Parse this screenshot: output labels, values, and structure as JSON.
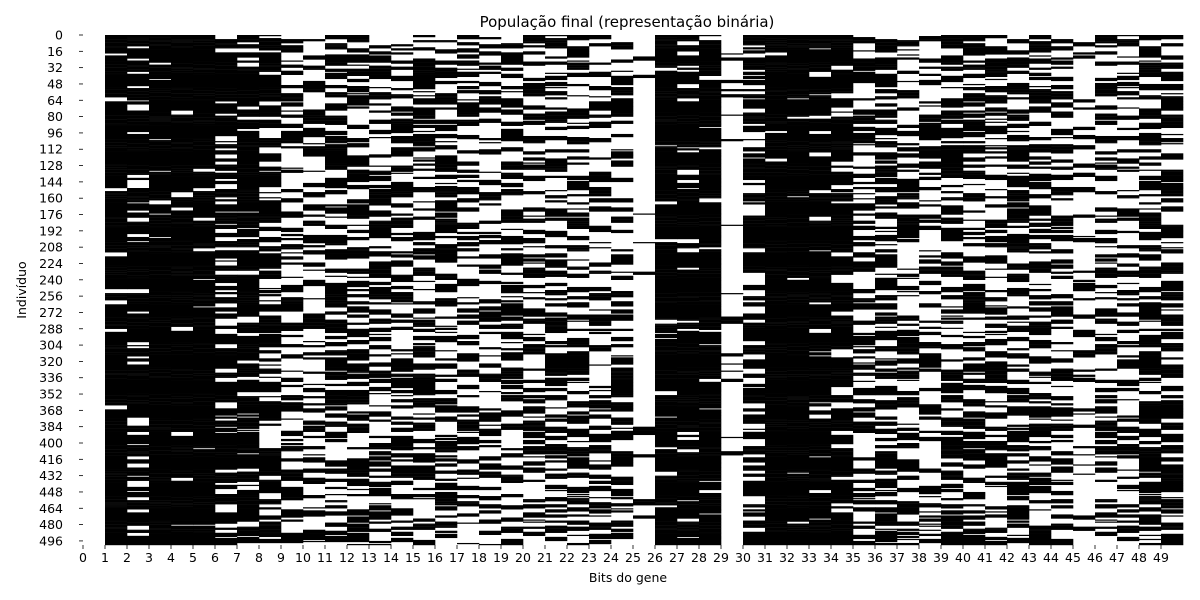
{
  "chart_data": {
    "type": "heatmap",
    "title": "População final (representação binária)",
    "xlabel": "Bits do gene",
    "ylabel": "Indivíduo",
    "n_rows": 500,
    "n_cols": 50,
    "x_tick_labels": [
      "0",
      "1",
      "2",
      "3",
      "4",
      "5",
      "6",
      "7",
      "8",
      "9",
      "10",
      "11",
      "12",
      "13",
      "14",
      "15",
      "16",
      "17",
      "18",
      "19",
      "20",
      "21",
      "22",
      "23",
      "24",
      "25",
      "26",
      "27",
      "28",
      "29",
      "30",
      "31",
      "32",
      "33",
      "34",
      "35",
      "36",
      "37",
      "38",
      "39",
      "40",
      "41",
      "42",
      "43",
      "44",
      "45",
      "46",
      "47",
      "48",
      "49"
    ],
    "y_tick_labels": [
      "0",
      "16",
      "32",
      "48",
      "64",
      "80",
      "96",
      "112",
      "128",
      "144",
      "160",
      "176",
      "192",
      "208",
      "224",
      "240",
      "256",
      "272",
      "288",
      "304",
      "320",
      "336",
      "352",
      "368",
      "384",
      "400",
      "416",
      "432",
      "448",
      "464",
      "480",
      "496"
    ],
    "value_colors": {
      "0": "#ffffff",
      "1": "#000000"
    },
    "approx_fraction_ones_by_column": [
      0.0,
      0.95,
      0.85,
      0.93,
      0.95,
      0.97,
      0.8,
      0.88,
      0.65,
      0.4,
      0.35,
      0.6,
      0.55,
      0.45,
      0.55,
      0.55,
      0.5,
      0.4,
      0.4,
      0.55,
      0.45,
      0.55,
      0.5,
      0.4,
      0.45,
      0.03,
      0.92,
      0.88,
      0.9,
      0.08,
      0.7,
      0.98,
      0.97,
      0.9,
      0.85,
      0.45,
      0.6,
      0.45,
      0.4,
      0.55,
      0.5,
      0.5,
      0.55,
      0.45,
      0.45,
      0.2,
      0.45,
      0.35,
      0.65,
      0.6
    ],
    "grid": false,
    "legend": "none"
  }
}
